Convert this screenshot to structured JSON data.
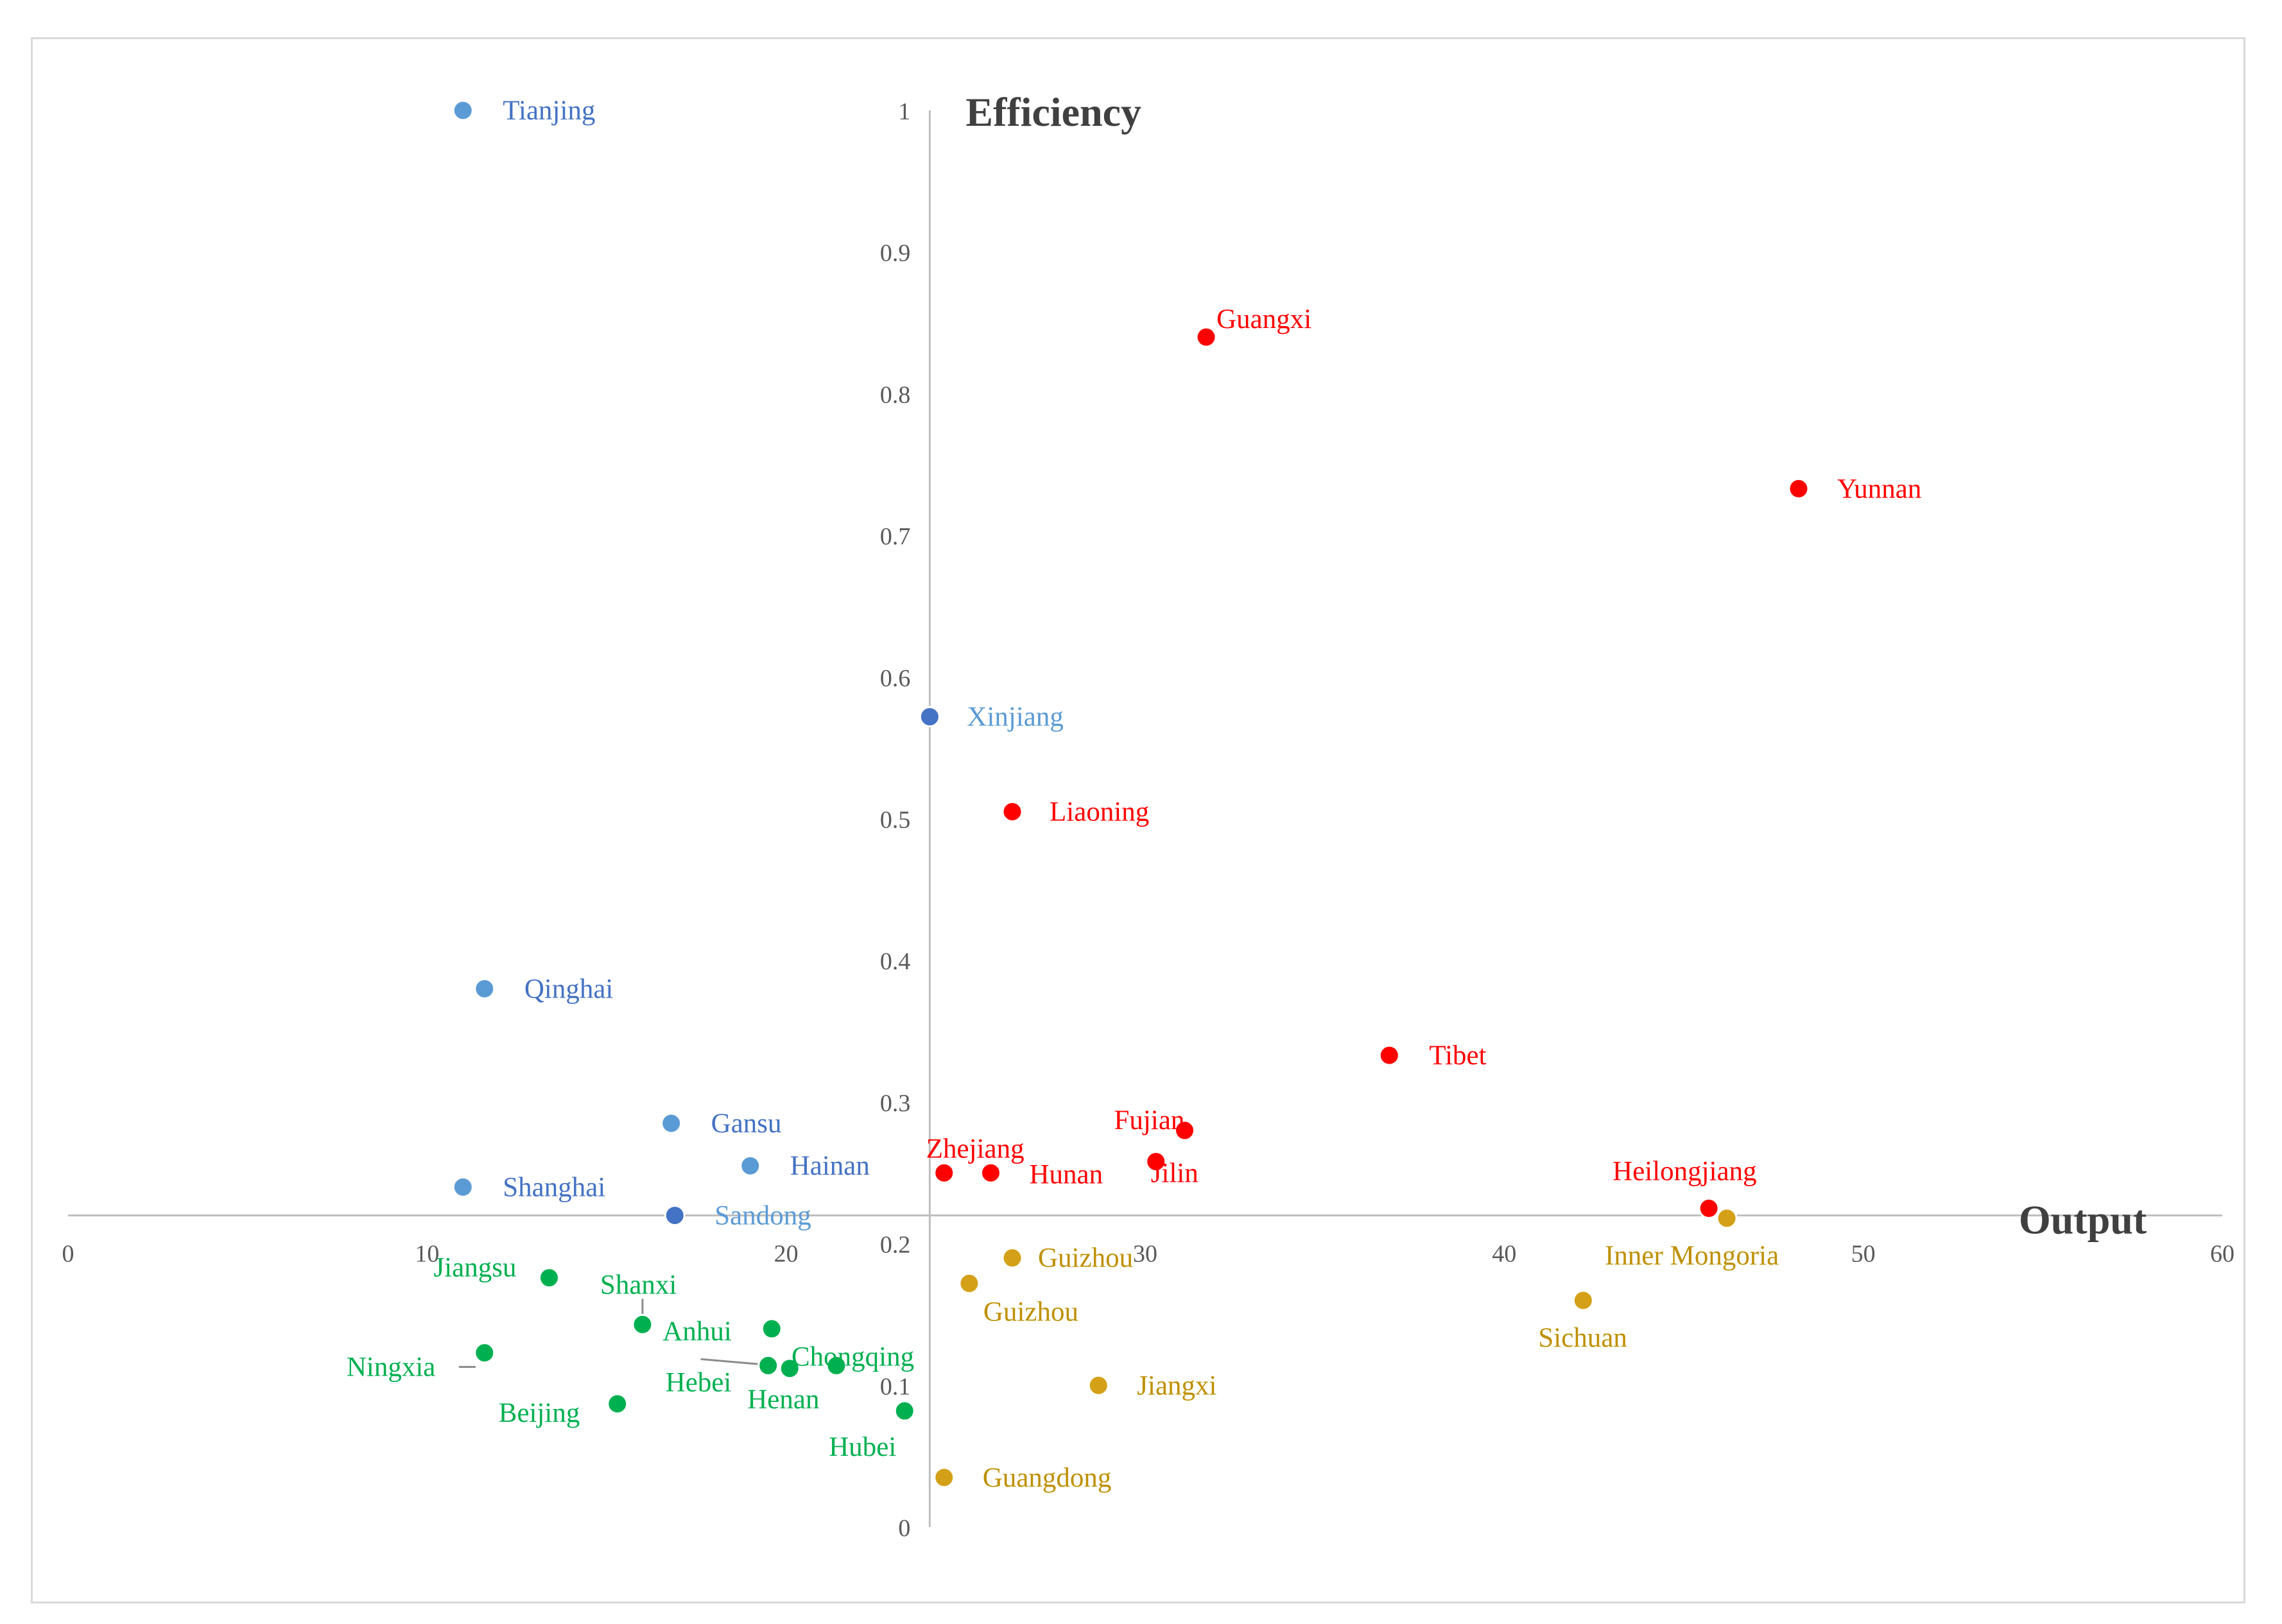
{
  "chart_data": {
    "type": "scatter",
    "title": "",
    "xlabel": "Output",
    "ylabel": "Efficiency",
    "xlim": [
      0,
      60
    ],
    "ylim": [
      0,
      1
    ],
    "x_ticks": [
      "0",
      "10",
      "20",
      "30",
      "40",
      "50",
      "60"
    ],
    "y_ticks": [
      "0",
      "0.1",
      "0.2",
      "0.3",
      "0.4",
      "0.5",
      "0.6",
      "0.7",
      "0.8",
      "0.9",
      "1"
    ],
    "grid": false,
    "legend": "none",
    "axis_crossing": {
      "x": 24,
      "y": 0.22
    },
    "series": [
      {
        "name": "light-blue group",
        "color": "#5b9bd5",
        "label_color": "#4472c4",
        "points": [
          {
            "label": "Tianjing",
            "x": 11.0,
            "y": 1.0
          },
          {
            "label": "Qinghai",
            "x": 11.6,
            "y": 0.38
          },
          {
            "label": "Gansu",
            "x": 16.8,
            "y": 0.285
          },
          {
            "label": "Hainan",
            "x": 19.0,
            "y": 0.255
          },
          {
            "label": "Shanghai",
            "x": 11.0,
            "y": 0.24
          }
        ]
      },
      {
        "name": "dark-blue group",
        "color": "#4472c4",
        "label_color": "#5b9bd5",
        "points": [
          {
            "label": "Xinjiang",
            "x": 24.0,
            "y": 0.572
          },
          {
            "label": "Sandong",
            "x": 16.9,
            "y": 0.22
          }
        ]
      },
      {
        "name": "red group",
        "color": "#ff0000",
        "label_color": "#ff0000",
        "points": [
          {
            "label": "Guangxi",
            "x": 31.7,
            "y": 0.84
          },
          {
            "label": "Yunnan",
            "x": 48.2,
            "y": 0.733
          },
          {
            "label": "Liaoning",
            "x": 26.3,
            "y": 0.505
          },
          {
            "label": "Tibet",
            "x": 36.8,
            "y": 0.333
          },
          {
            "label": "Fujian",
            "x": 31.1,
            "y": 0.28
          },
          {
            "label": "Jilin",
            "x": 30.3,
            "y": 0.258
          },
          {
            "label": "Zhejiang",
            "x": 24.4,
            "y": 0.25
          },
          {
            "label": "Hunan",
            "x": 25.7,
            "y": 0.25
          },
          {
            "label": "Heilongjiang",
            "x": 45.7,
            "y": 0.225
          }
        ]
      },
      {
        "name": "gold group",
        "color": "#d4a017",
        "label_color": "#bf9000",
        "points": [
          {
            "label": "Inner Mongoria",
            "x": 46.2,
            "y": 0.218
          },
          {
            "label": "Guizhou",
            "x": 26.3,
            "y": 0.19
          },
          {
            "label": "Guizhou",
            "x": 25.1,
            "y": 0.172
          },
          {
            "label": "Sichuan",
            "x": 42.2,
            "y": 0.16
          },
          {
            "label": "Jiangxi",
            "x": 28.7,
            "y": 0.1
          },
          {
            "label": "Guangdong",
            "x": 24.4,
            "y": 0.035
          }
        ]
      },
      {
        "name": "green group",
        "color": "#00b050",
        "label_color": "#00b050",
        "points": [
          {
            "label": "Jiangsu",
            "x": 13.4,
            "y": 0.176
          },
          {
            "label": "Shanxi",
            "x": 16.0,
            "y": 0.143
          },
          {
            "label": "Anhui",
            "x": 19.6,
            "y": 0.14
          },
          {
            "label": "Chongqing",
            "x": 21.4,
            "y": 0.114
          },
          {
            "label": "Hebei",
            "x": 19.5,
            "y": 0.114
          },
          {
            "label": "Henan",
            "x": 20.1,
            "y": 0.112
          },
          {
            "label": "Ningxia",
            "x": 11.6,
            "y": 0.123
          },
          {
            "label": "Beijing",
            "x": 15.3,
            "y": 0.087
          },
          {
            "label": "Hubei",
            "x": 23.3,
            "y": 0.082
          }
        ]
      }
    ]
  }
}
